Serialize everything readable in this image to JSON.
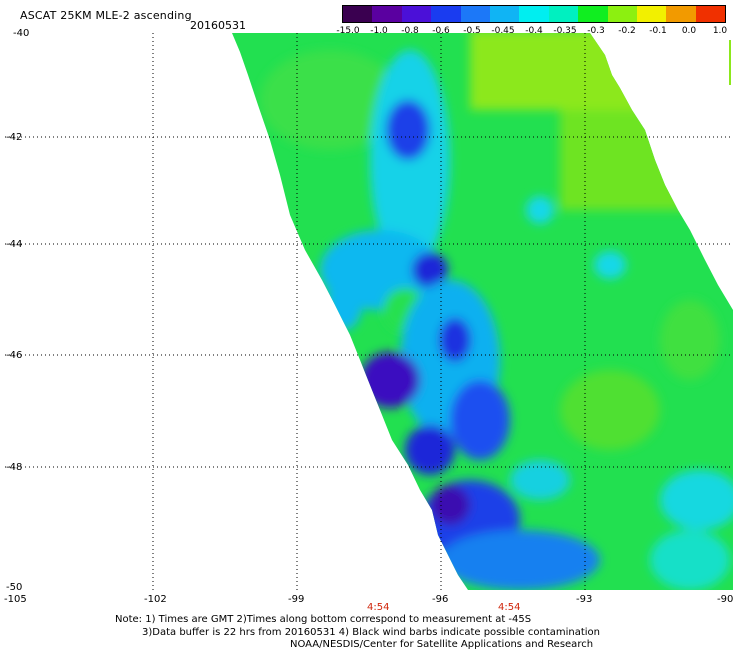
{
  "header": {
    "title": "ASCAT 25KM MLE-2 ascending",
    "date": "20160531"
  },
  "colorbar": {
    "labels": [
      "-15.0",
      "-1.0",
      "-0.8",
      "-0.6",
      "-0.5",
      "-0.45",
      "-0.4",
      "-0.35",
      "-0.3",
      "-0.2",
      "-0.1",
      "0.0",
      "1.0"
    ],
    "colors": [
      "#3a0050",
      "#5a00a0",
      "#4b10d8",
      "#1a3cf0",
      "#1c78f8",
      "#10b4f4",
      "#00eef0",
      "#00f0c0",
      "#10ee20",
      "#8cf010",
      "#f2f000",
      "#f29a00",
      "#f03000"
    ]
  },
  "axes": {
    "lon_labels": [
      "-105",
      "-102",
      "-99",
      "-96",
      "-93",
      "-90"
    ],
    "lat_labels": [
      "-40",
      "-42",
      "-44",
      "-46",
      "-48",
      "-50"
    ]
  },
  "times": [
    "4:54",
    "4:54"
  ],
  "notes": {
    "line1": "Note: 1) Times are GMT 2)Times along bottom correspond to measurement at -45S",
    "line2": "3)Data buffer is 22 hrs from 20160531 4) Black wind barbs indicate possible contamination",
    "line3": "NOAA/NESDIS/Center for Satellite Applications and Research"
  }
}
